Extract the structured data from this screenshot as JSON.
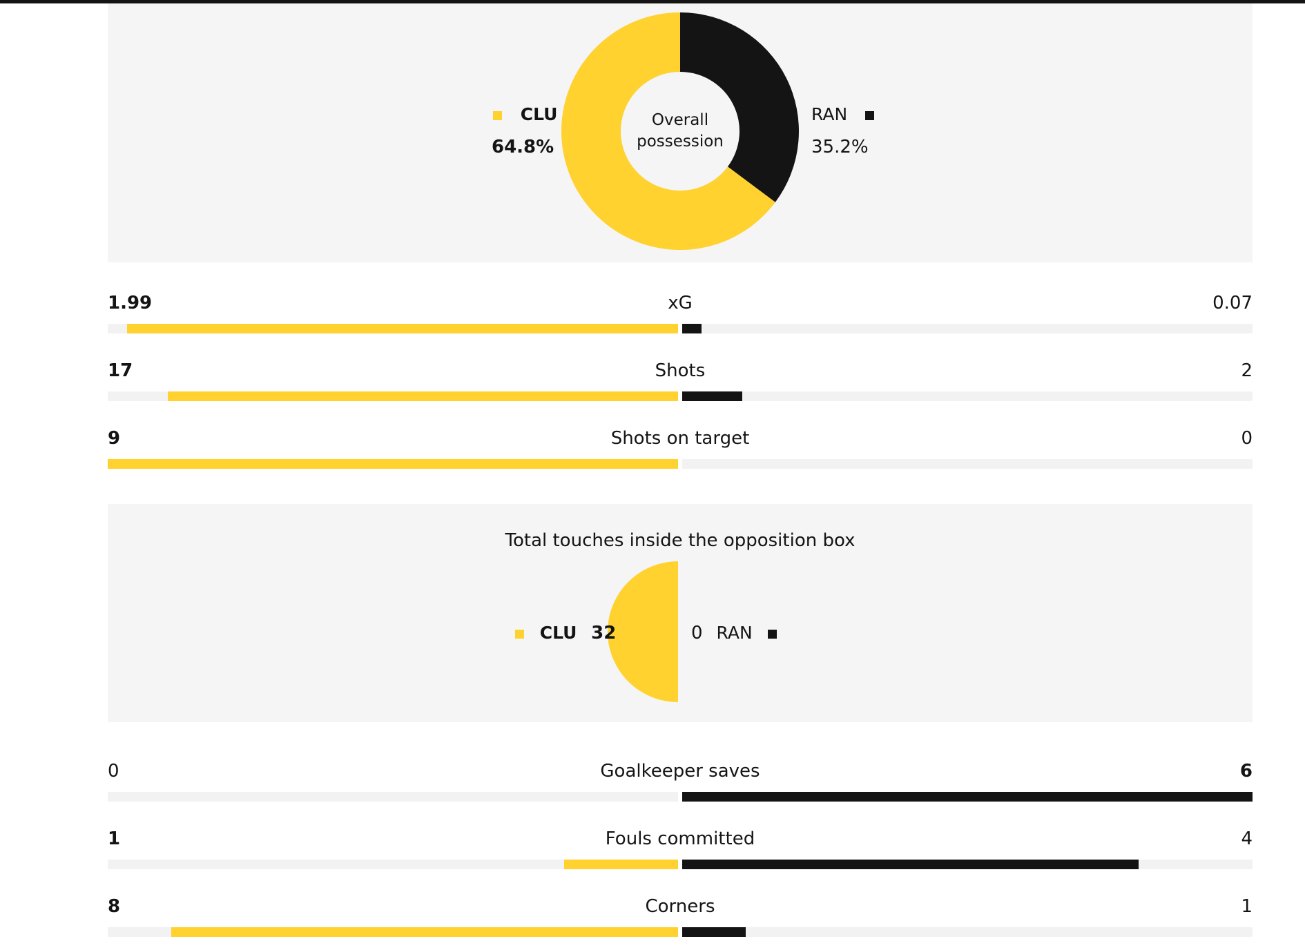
{
  "chart_data": [
    {
      "type": "pie",
      "subtype": "donut",
      "title": "Overall possession",
      "slices": [
        {
          "team": "CLU",
          "value": 64.8,
          "display": "64.8%",
          "color": "#ffd230"
        },
        {
          "team": "RAN",
          "value": 35.2,
          "display": "35.2%",
          "color": "#141414"
        }
      ]
    },
    {
      "type": "bar",
      "subtype": "diverging-comparison",
      "teams": [
        "CLU",
        "RAN"
      ],
      "rows": [
        {
          "name": "xG",
          "home": 1.99,
          "away": 0.07,
          "home_display": "1.99",
          "away_display": "0.07",
          "home_bold": true,
          "away_bold": false
        },
        {
          "name": "Shots",
          "home": 17,
          "away": 2,
          "home_display": "17",
          "away_display": "2",
          "home_bold": true,
          "away_bold": false
        },
        {
          "name": "Shots on target",
          "home": 9,
          "away": 0,
          "home_display": "9",
          "away_display": "0",
          "home_bold": true,
          "away_bold": false
        }
      ]
    },
    {
      "type": "pie",
      "subtype": "half-circle-comparison",
      "title": "Total touches inside the opposition box",
      "slices": [
        {
          "team": "CLU",
          "value": 32,
          "display": "32",
          "color": "#ffd230"
        },
        {
          "team": "RAN",
          "value": 0,
          "display": "0",
          "color": "#141414"
        }
      ]
    },
    {
      "type": "bar",
      "subtype": "diverging-comparison",
      "teams": [
        "CLU",
        "RAN"
      ],
      "rows": [
        {
          "name": "Goalkeeper saves",
          "home": 0,
          "away": 6,
          "home_display": "0",
          "away_display": "6",
          "home_bold": false,
          "away_bold": true
        },
        {
          "name": "Fouls committed",
          "home": 1,
          "away": 4,
          "home_display": "1",
          "away_display": "4",
          "home_bold": true,
          "away_bold": false
        },
        {
          "name": "Corners",
          "home": 8,
          "away": 1,
          "home_display": "8",
          "away_display": "1",
          "home_bold": true,
          "away_bold": false
        }
      ]
    }
  ],
  "colors": {
    "home": "#ffd230",
    "away": "#141414",
    "panel": "#f5f5f5",
    "track": "#f2f2f2"
  }
}
